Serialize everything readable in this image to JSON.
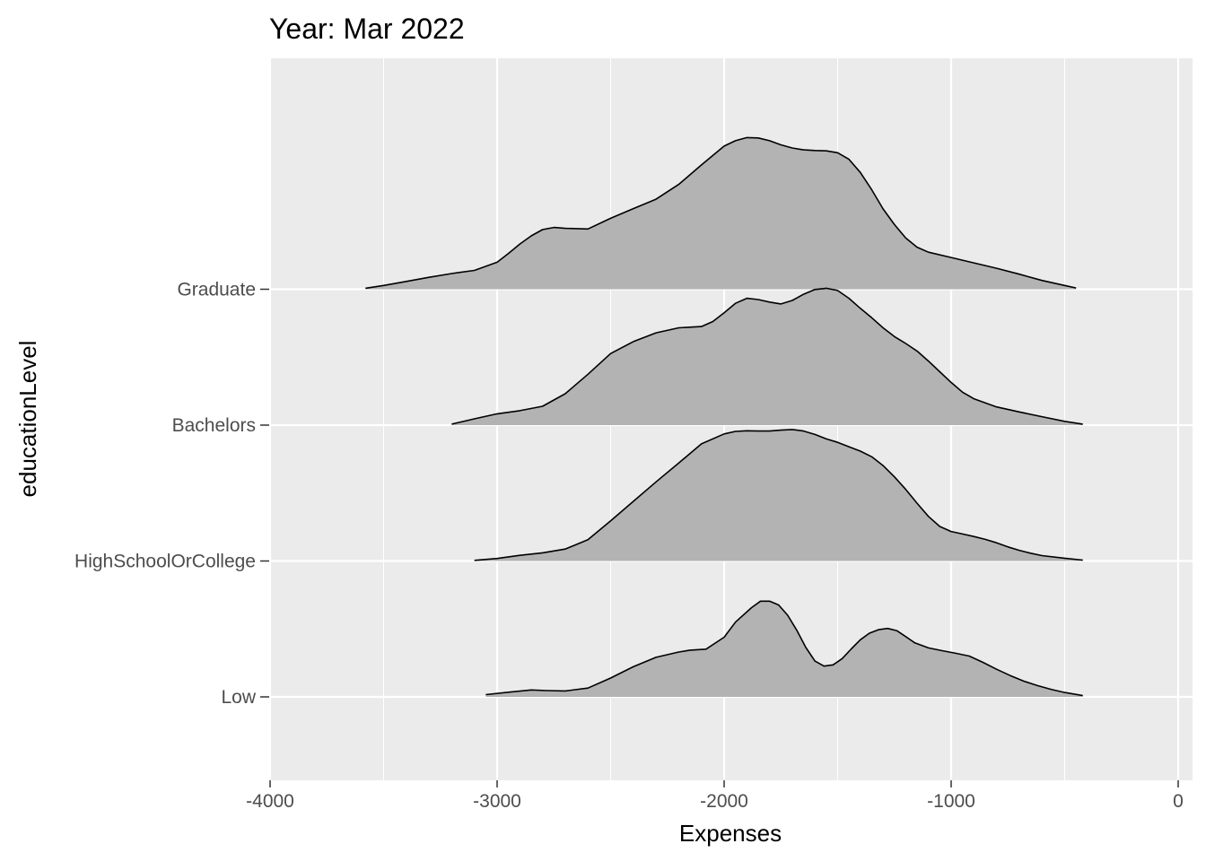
{
  "chart_data": {
    "type": "ridgeline",
    "title": "Year: Mar 2022",
    "xlabel": "Expenses",
    "ylabel": "educationLevel",
    "xlim": [
      -4000,
      0
    ],
    "x_ticks": [
      -4000,
      -3000,
      -2000,
      -1000,
      0
    ],
    "x_tick_labels": [
      "-4000",
      "-3000",
      "-2000",
      "-1000",
      "0"
    ],
    "categories": [
      "Low",
      "HighSchoolOrCollege",
      "Bachelors",
      "Graduate"
    ],
    "grid": true,
    "fill_color": "#b3b3b3",
    "line_color": "#000000",
    "panel_color": "#ebebeb",
    "gridline_color": "#ffffff",
    "series": [
      {
        "category": "Low",
        "x": [
          -3050,
          -2950,
          -2850,
          -2780,
          -2700,
          -2600,
          -2500,
          -2400,
          -2300,
          -2200,
          -2150,
          -2080,
          -2000,
          -1950,
          -1880,
          -1840,
          -1800,
          -1760,
          -1720,
          -1680,
          -1640,
          -1600,
          -1560,
          -1520,
          -1480,
          -1440,
          -1400,
          -1360,
          -1320,
          -1280,
          -1240,
          -1200,
          -1160,
          -1100,
          -1040,
          -980,
          -920,
          -860,
          -800,
          -740,
          -680,
          -620,
          -560,
          -500,
          -420
        ],
        "density": [
          0.07,
          0.15,
          0.22,
          0.2,
          0.19,
          0.28,
          0.6,
          0.96,
          1.26,
          1.43,
          1.49,
          1.52,
          1.9,
          2.38,
          2.84,
          3.05,
          3.05,
          2.93,
          2.6,
          2.12,
          1.57,
          1.14,
          0.98,
          1.02,
          1.22,
          1.53,
          1.82,
          2.03,
          2.14,
          2.18,
          2.11,
          1.92,
          1.72,
          1.56,
          1.47,
          1.39,
          1.3,
          1.1,
          0.88,
          0.68,
          0.5,
          0.36,
          0.24,
          0.14,
          0.04
        ]
      },
      {
        "category": "HighSchoolOrCollege",
        "x": [
          -3100,
          -3000,
          -2900,
          -2800,
          -2700,
          -2600,
          -2500,
          -2400,
          -2300,
          -2200,
          -2100,
          -2000,
          -1950,
          -1900,
          -1850,
          -1800,
          -1750,
          -1700,
          -1650,
          -1600,
          -1550,
          -1500,
          -1450,
          -1400,
          -1350,
          -1300,
          -1250,
          -1200,
          -1150,
          -1100,
          -1050,
          -1000,
          -950,
          -900,
          -850,
          -800,
          -750,
          -700,
          -650,
          -600,
          -500,
          -420
        ],
        "density": [
          0.02,
          0.08,
          0.18,
          0.26,
          0.38,
          0.68,
          1.28,
          1.9,
          2.52,
          3.12,
          3.73,
          4.05,
          4.13,
          4.15,
          4.14,
          4.14,
          4.17,
          4.19,
          4.14,
          4.03,
          3.89,
          3.78,
          3.64,
          3.5,
          3.32,
          3.04,
          2.68,
          2.28,
          1.84,
          1.42,
          1.1,
          0.94,
          0.86,
          0.78,
          0.69,
          0.58,
          0.45,
          0.34,
          0.25,
          0.17,
          0.09,
          0.03
        ]
      },
      {
        "category": "Bachelors",
        "x": [
          -3200,
          -3100,
          -3000,
          -2900,
          -2800,
          -2700,
          -2600,
          -2500,
          -2400,
          -2300,
          -2200,
          -2100,
          -2050,
          -2000,
          -1950,
          -1900,
          -1850,
          -1800,
          -1750,
          -1700,
          -1650,
          -1600,
          -1550,
          -1500,
          -1450,
          -1400,
          -1350,
          -1300,
          -1250,
          -1200,
          -1150,
          -1100,
          -1050,
          -1000,
          -950,
          -900,
          -800,
          -700,
          -600,
          -500,
          -420
        ],
        "density": [
          0.03,
          0.2,
          0.36,
          0.46,
          0.6,
          1.0,
          1.62,
          2.28,
          2.66,
          2.94,
          3.1,
          3.14,
          3.3,
          3.58,
          3.88,
          4.04,
          4.0,
          3.92,
          3.86,
          3.97,
          4.17,
          4.32,
          4.36,
          4.29,
          4.04,
          3.72,
          3.42,
          3.1,
          2.82,
          2.6,
          2.36,
          2.04,
          1.7,
          1.36,
          1.05,
          0.84,
          0.58,
          0.42,
          0.27,
          0.12,
          0.03
        ]
      },
      {
        "category": "Graduate",
        "x": [
          -3580,
          -3500,
          -3400,
          -3300,
          -3200,
          -3100,
          -3000,
          -2950,
          -2900,
          -2850,
          -2800,
          -2750,
          -2700,
          -2650,
          -2600,
          -2500,
          -2400,
          -2300,
          -2200,
          -2100,
          -2000,
          -1950,
          -1900,
          -1850,
          -1800,
          -1750,
          -1700,
          -1650,
          -1600,
          -1550,
          -1500,
          -1450,
          -1400,
          -1350,
          -1300,
          -1250,
          -1200,
          -1150,
          -1100,
          -1000,
          -900,
          -800,
          -700,
          -600,
          -500,
          -450
        ],
        "density": [
          0.03,
          0.12,
          0.25,
          0.38,
          0.5,
          0.6,
          0.86,
          1.14,
          1.44,
          1.7,
          1.9,
          1.97,
          1.94,
          1.93,
          1.92,
          2.26,
          2.57,
          2.87,
          3.34,
          3.96,
          4.56,
          4.73,
          4.83,
          4.82,
          4.73,
          4.6,
          4.5,
          4.44,
          4.42,
          4.41,
          4.35,
          4.14,
          3.72,
          3.17,
          2.56,
          2.06,
          1.63,
          1.34,
          1.18,
          1.01,
          0.84,
          0.67,
          0.48,
          0.28,
          0.12,
          0.04
        ]
      }
    ]
  }
}
